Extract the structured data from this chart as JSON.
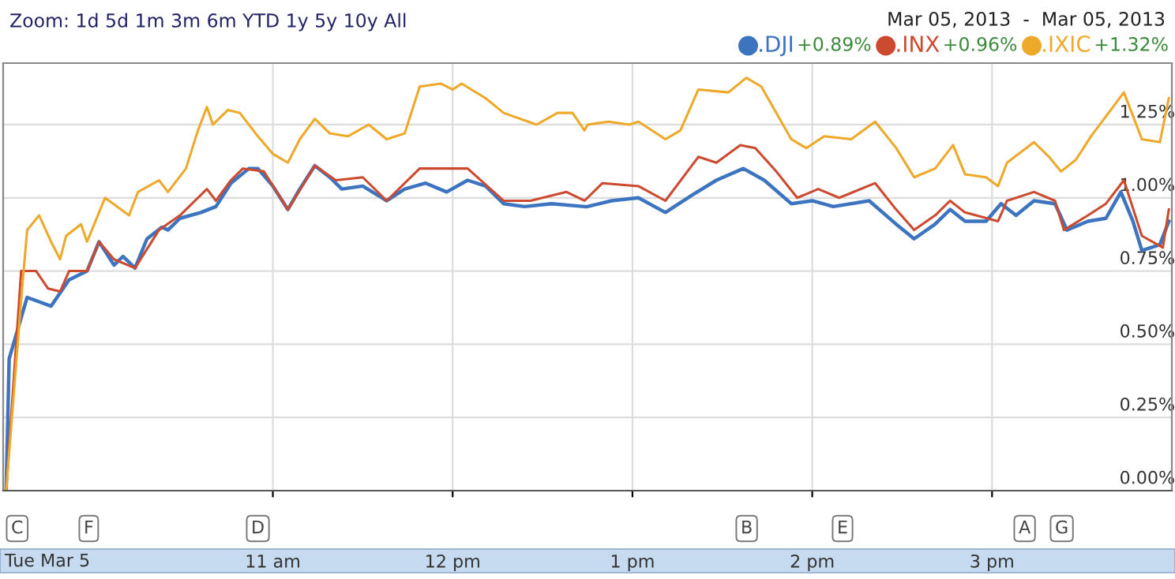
{
  "chart_data": {
    "type": "line",
    "annotations": [
      "Zoom: 1d 5d 1m 3m 6m YTD 1y 5y 10y All",
      "Mar 05, 2013  -  Mar 05, 2013",
      "+0.89%",
      "+0.96%",
      "+1.32%",
      "Tue Mar 5",
      "C",
      "F",
      "D",
      "B",
      "E",
      "A",
      "G"
    ],
    "series": [
      {
        "name": ".DJI",
        "color": "#3d74c0",
        "x": [
          "2013-03-05T09:31",
          "2013-03-05T09:32",
          "2013-03-05T09:38",
          "2013-03-05T09:46",
          "2013-03-05T09:50",
          "2013-03-05T09:52",
          "2013-03-05T09:58",
          "2013-03-05T10:02",
          "2013-03-05T10:07",
          "2013-03-05T10:10",
          "2013-03-05T10:14",
          "2013-03-05T10:18",
          "2013-03-05T10:23",
          "2013-03-05T10:25",
          "2013-03-05T10:29",
          "2013-03-05T10:36",
          "2013-03-05T10:41",
          "2013-03-05T10:46",
          "2013-03-05T10:52",
          "2013-03-05T10:55",
          "2013-03-05T11:00",
          "2013-03-05T11:05",
          "2013-03-05T11:09",
          "2013-03-05T11:14",
          "2013-03-05T11:19",
          "2013-03-05T11:23",
          "2013-03-05T11:30",
          "2013-03-05T11:38",
          "2013-03-05T11:44",
          "2013-03-05T11:51",
          "2013-03-05T11:58",
          "2013-03-05T12:05",
          "2013-03-05T12:11",
          "2013-03-05T12:17",
          "2013-03-05T12:24",
          "2013-03-05T12:33",
          "2013-03-05T12:44",
          "2013-03-05T12:45",
          "2013-03-05T12:53",
          "2013-03-05T13:02",
          "2013-03-05T13:11",
          "2013-03-05T13:20",
          "2013-03-05T13:28",
          "2013-03-05T13:37",
          "2013-03-05T13:44",
          "2013-03-05T13:53",
          "2013-03-05T14:00",
          "2013-03-05T14:07",
          "2013-03-05T14:19",
          "2013-03-05T14:28",
          "2013-03-05T14:34",
          "2013-03-05T14:41",
          "2013-03-05T14:46",
          "2013-03-05T14:51",
          "2013-03-05T14:58",
          "2013-03-05T15:03",
          "2013-03-05T15:08",
          "2013-03-05T15:14",
          "2013-03-05T15:21",
          "2013-03-05T15:25",
          "2013-03-05T15:32",
          "2013-03-05T15:38",
          "2013-03-05T15:43",
          "2013-03-05T15:47",
          "2013-03-05T15:50",
          "2013-03-05T15:56",
          "2013-03-05T15:59"
        ],
        "values": [
          0,
          0.45,
          0.66,
          0.63,
          0.69,
          0.72,
          0.75,
          0.85,
          0.77,
          0.8,
          0.76,
          0.86,
          0.9,
          0.89,
          0.93,
          0.95,
          0.97,
          1.05,
          1.1,
          1.1,
          1.04,
          0.96,
          1.03,
          1.11,
          1.07,
          1.03,
          1.04,
          0.99,
          1.03,
          1.05,
          1.02,
          1.06,
          1.04,
          0.98,
          0.97,
          0.98,
          0.97,
          0.97,
          0.99,
          1.0,
          0.95,
          1.01,
          1.06,
          1.1,
          1.06,
          0.98,
          0.99,
          0.97,
          0.99,
          0.91,
          0.86,
          0.91,
          0.96,
          0.92,
          0.92,
          0.98,
          0.94,
          0.99,
          0.98,
          0.89,
          0.92,
          0.93,
          1.02,
          0.92,
          0.82,
          0.84,
          0.92
        ]
      },
      {
        "name": ".INX",
        "color": "#cc4a30",
        "x": [
          "2013-03-05T09:31",
          "2013-03-05T09:36",
          "2013-03-05T09:41",
          "2013-03-05T09:45",
          "2013-03-05T09:49",
          "2013-03-05T09:52",
          "2013-03-05T09:58",
          "2013-03-05T10:02",
          "2013-03-05T10:07",
          "2013-03-05T10:14",
          "2013-03-05T10:22",
          "2013-03-05T10:29",
          "2013-03-05T10:38",
          "2013-03-05T10:41",
          "2013-03-05T10:46",
          "2013-03-05T10:50",
          "2013-03-05T10:57",
          "2013-03-05T11:05",
          "2013-03-05T11:14",
          "2013-03-05T11:21",
          "2013-03-05T11:30",
          "2013-03-05T11:38",
          "2013-03-05T11:49",
          "2013-03-05T11:56",
          "2013-03-05T12:05",
          "2013-03-05T12:17",
          "2013-03-05T12:26",
          "2013-03-05T12:38",
          "2013-03-05T12:44",
          "2013-03-05T12:45",
          "2013-03-05T12:50",
          "2013-03-05T13:02",
          "2013-03-05T13:11",
          "2013-03-05T13:22",
          "2013-03-05T13:28",
          "2013-03-05T13:36",
          "2013-03-05T13:41",
          "2013-03-05T13:48",
          "2013-03-05T13:55",
          "2013-03-05T14:02",
          "2013-03-05T14:09",
          "2013-03-05T14:21",
          "2013-03-05T14:28",
          "2013-03-05T14:34",
          "2013-03-05T14:41",
          "2013-03-05T14:46",
          "2013-03-05T14:51",
          "2013-03-05T15:02",
          "2013-03-05T15:05",
          "2013-03-05T15:14",
          "2013-03-05T15:21",
          "2013-03-05T15:24",
          "2013-03-05T15:32",
          "2013-03-05T15:38",
          "2013-03-05T15:44",
          "2013-03-05T15:50",
          "2013-03-05T15:57",
          "2013-03-05T15:59"
        ],
        "values": [
          0,
          0.75,
          0.75,
          0.69,
          0.68,
          0.75,
          0.75,
          0.85,
          0.79,
          0.76,
          0.89,
          0.94,
          1.03,
          0.99,
          1.06,
          1.1,
          1.09,
          0.96,
          1.11,
          1.06,
          1.07,
          0.99,
          1.1,
          1.1,
          1.1,
          0.99,
          0.99,
          1.02,
          0.99,
          1.0,
          1.05,
          1.04,
          0.99,
          1.14,
          1.12,
          1.18,
          1.17,
          1.09,
          1.0,
          1.03,
          1.0,
          1.05,
          0.96,
          0.89,
          0.94,
          0.99,
          0.95,
          0.92,
          0.99,
          1.02,
          0.99,
          0.89,
          0.94,
          0.98,
          1.06,
          0.87,
          0.83,
          0.96
        ]
      },
      {
        "name": ".IXIC",
        "color": "#eea92a",
        "x": [
          "2013-03-05T09:31",
          "2013-03-05T09:36",
          "2013-03-05T09:38",
          "2013-03-05T09:42",
          "2013-03-05T09:46",
          "2013-03-05T09:49",
          "2013-03-05T09:51",
          "2013-03-05T09:56",
          "2013-03-05T09:58",
          "2013-03-05T10:04",
          "2013-03-05T10:12",
          "2013-03-05T10:15",
          "2013-03-05T10:22",
          "2013-03-05T10:25",
          "2013-03-05T10:31",
          "2013-03-05T10:35",
          "2013-03-05T10:38",
          "2013-03-05T10:40",
          "2013-03-05T10:45",
          "2013-03-05T10:49",
          "2013-03-05T10:55",
          "2013-03-05T11:00",
          "2013-03-05T11:05",
          "2013-03-05T11:09",
          "2013-03-05T11:14",
          "2013-03-05T11:19",
          "2013-03-05T11:25",
          "2013-03-05T11:32",
          "2013-03-05T11:38",
          "2013-03-05T11:44",
          "2013-03-05T11:49",
          "2013-03-05T11:56",
          "2013-03-05T12:00",
          "2013-03-05T12:03",
          "2013-03-05T12:11",
          "2013-03-05T12:17",
          "2013-03-05T12:28",
          "2013-03-05T12:35",
          "2013-03-05T12:40",
          "2013-03-05T12:44",
          "2013-03-05T12:45",
          "2013-03-05T12:52",
          "2013-03-05T12:59",
          "2013-03-05T13:02",
          "2013-03-05T13:11",
          "2013-03-05T13:16",
          "2013-03-05T13:22",
          "2013-03-05T13:32",
          "2013-03-05T13:38",
          "2013-03-05T13:43",
          "2013-03-05T13:53",
          "2013-03-05T13:58",
          "2013-03-05T14:04",
          "2013-03-05T14:13",
          "2013-03-05T14:21",
          "2013-03-05T14:28",
          "2013-03-05T14:34",
          "2013-03-05T14:41",
          "2013-03-05T14:47",
          "2013-03-05T14:51",
          "2013-03-05T14:58",
          "2013-03-05T15:02",
          "2013-03-05T15:05",
          "2013-03-05T15:14",
          "2013-03-05T15:19",
          "2013-03-05T15:23",
          "2013-03-05T15:28",
          "2013-03-05T15:33",
          "2013-03-05T15:44",
          "2013-03-05T15:50",
          "2013-03-05T15:56",
          "2013-03-05T15:59"
        ],
        "values": [
          0,
          0.65,
          0.89,
          0.94,
          0.85,
          0.79,
          0.87,
          0.91,
          0.85,
          1.0,
          0.94,
          1.02,
          1.06,
          1.02,
          1.1,
          1.23,
          1.31,
          1.25,
          1.3,
          1.29,
          1.21,
          1.15,
          1.12,
          1.2,
          1.27,
          1.22,
          1.21,
          1.25,
          1.2,
          1.22,
          1.38,
          1.39,
          1.37,
          1.39,
          1.34,
          1.29,
          1.25,
          1.29,
          1.29,
          1.23,
          1.25,
          1.26,
          1.25,
          1.26,
          1.2,
          1.23,
          1.37,
          1.36,
          1.41,
          1.38,
          1.2,
          1.17,
          1.21,
          1.2,
          1.26,
          1.17,
          1.07,
          1.1,
          1.18,
          1.08,
          1.07,
          1.04,
          1.12,
          1.19,
          1.14,
          1.09,
          1.13,
          1.21,
          1.36,
          1.2,
          1.19,
          1.34
        ]
      }
    ],
    "xlim": [
      "2013-03-05T09:30",
      "2013-03-05T16:00"
    ],
    "xticks": [
      {
        "value": "2013-03-05T11:00",
        "label": "11 am"
      },
      {
        "value": "2013-03-05T12:00",
        "label": "12 pm"
      },
      {
        "value": "2013-03-05T13:00",
        "label": "1 pm"
      },
      {
        "value": "2013-03-05T14:00",
        "label": "2 pm"
      },
      {
        "value": "2013-03-05T15:00",
        "label": "3 pm"
      }
    ],
    "ylim": [
      0,
      1.46
    ],
    "yticks": [
      {
        "value": 0,
        "label": "0.00%"
      },
      {
        "value": 0.25,
        "label": "0.25%"
      },
      {
        "value": 0.5,
        "label": "0.50%"
      },
      {
        "value": 0.75,
        "label": "0.75%"
      },
      {
        "value": 1.0,
        "label": "1.00%"
      },
      {
        "value": 1.25,
        "label": "1.25%"
      }
    ],
    "grid": true,
    "legend": "top right",
    "marker": "none",
    "line_style": "solid"
  }
}
